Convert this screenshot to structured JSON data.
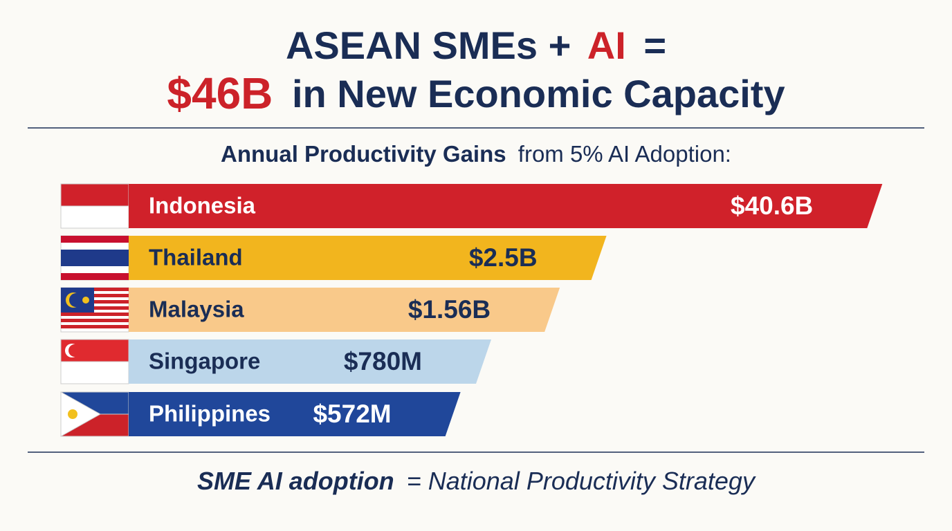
{
  "chart_data": {
    "type": "bar",
    "orientation": "horizontal",
    "log_scale": true,
    "title": {
      "line1": [
        "ASEAN SMEs +",
        "AI",
        "="
      ],
      "line2": [
        "$46B",
        "in New Economic Capacity"
      ]
    },
    "subtitle": [
      "Annual Productivity Gains",
      "from 5% AI Adoption:"
    ],
    "categories": [
      "Indonesia",
      "Thailand",
      "Malaysia",
      "Singapore",
      "Philippines"
    ],
    "values": [
      40600000000,
      2500000000,
      1560000000,
      780000000,
      572000000
    ],
    "value_labels": [
      "$40.6B",
      "$2.5B",
      "$1.56B",
      "$780M",
      "$572M"
    ],
    "colors": [
      "#d0212a",
      "#f2b51e",
      "#f9c98a",
      "#bcd6ea",
      "#20479a"
    ],
    "xlim": [
      20000000,
      45000000000
    ],
    "footer": [
      "SME AI adoption",
      "= National Productivity Strategy"
    ]
  }
}
